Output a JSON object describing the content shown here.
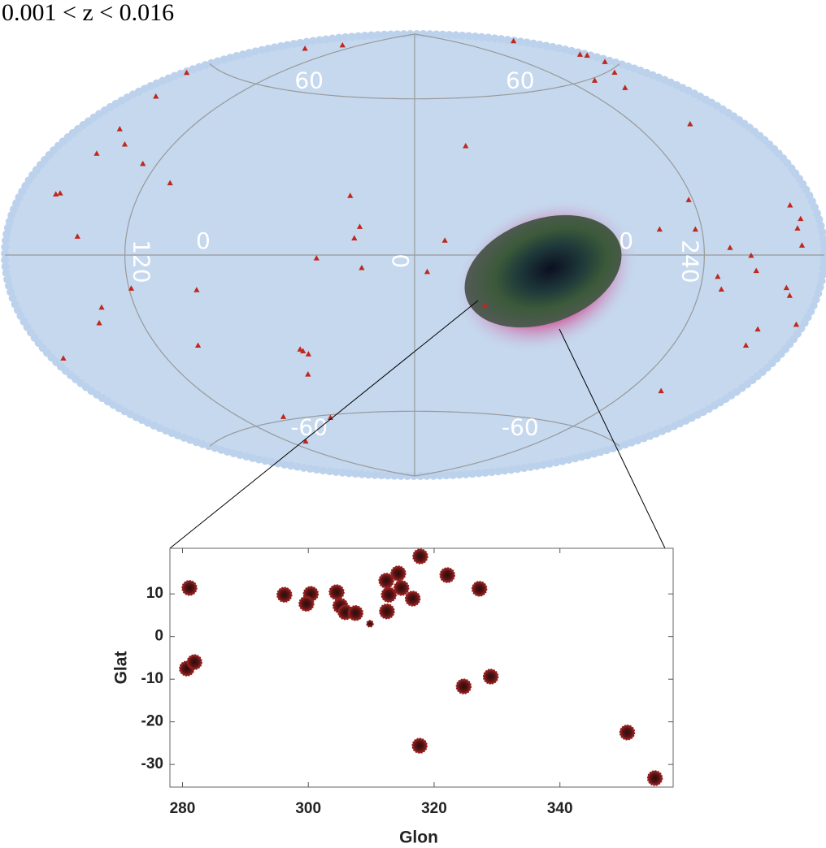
{
  "chart_data": [
    {
      "type": "skymap",
      "title": "0.001 < z < 0.016",
      "color": "#c0281e",
      "lon": [
        -157,
        -139,
        178,
        176,
        178,
        175,
        -178,
        138,
        162,
        147,
        -165,
        -157,
        -145,
        -155,
        -127,
        150,
        25,
        -108,
        -161,
        -159,
        -27,
        118,
        -22,
        -24,
        -143,
        12,
        101,
        117,
        167,
        170,
        167,
        168,
        132,
        142,
        -39,
        -21,
        5,
        145,
        127,
        130,
        162,
        165,
        -119,
        -90,
        -136,
        -141,
        29,
        176,
        157,
        157,
        -100,
        -174,
        -53,
        -52,
        -50,
        -55,
        138,
        -92,
        -61,
        -107
      ],
      "lat": [
        73.7,
        78.8,
        76,
        66,
        65,
        62,
        56,
        59.2,
        59.1,
        54.7,
        48.4,
        37.8,
        34,
        30,
        29.1,
        40.4,
        40.6,
        23.8,
        17.2,
        17.6,
        21.7,
        17.7,
        10.3,
        6.1,
        5.5,
        5.3,
        8.5,
        8.2,
        13.7,
        9.8,
        7.3,
        2.6,
        2.2,
        -0.2,
        -1.2,
        -4.7,
        -6.2,
        -4.7,
        -6.8,
        -10.7,
        -9.2,
        -11.3,
        -10.7,
        -11.9,
        -16.1,
        -20.7,
        -18.4,
        -18.7,
        -21.5,
        -26.4,
        -30.7,
        -28.6,
        -34.3,
        -35,
        -36.2,
        -43.8,
        -43.7,
        -58.7,
        -61.2,
        -68.6
      ],
      "parallels": [
        60,
        0,
        -60
      ],
      "meridians": [
        {
          "value": -120,
          "label": "120"
        },
        0,
        {
          "value": 120,
          "label": "240"
        }
      ]
    },
    {
      "type": "scatter",
      "xlabel": "Glon",
      "ylabel": "Glat",
      "color": "#8e1c1c",
      "x": [
        281.1,
        280.7,
        281.9,
        296.2,
        300.4,
        299.7,
        304.5,
        305.1,
        305.9,
        307.5,
        309.8,
        312.4,
        312.8,
        312.5,
        314.3,
        314.8,
        316.6,
        317.8,
        322.1,
        327.2,
        317.7,
        324.7,
        329,
        350.7,
        355.1
      ],
      "y": [
        11.4,
        -7.5,
        -6,
        9.8,
        10,
        7.7,
        10.4,
        7.2,
        5.7,
        5.5,
        3,
        13.1,
        9.8,
        5.9,
        14.8,
        11.4,
        8.9,
        18.8,
        14.4,
        11.2,
        -25.6,
        -11.7,
        -9.4,
        -22.5,
        -33.2
      ],
      "xlim": [
        278,
        358
      ],
      "ylim": [
        -35.3,
        20.7
      ],
      "xticks": [
        280,
        300,
        320,
        340
      ],
      "yticks": [
        10,
        0,
        -10,
        -20,
        -30
      ]
    }
  ]
}
